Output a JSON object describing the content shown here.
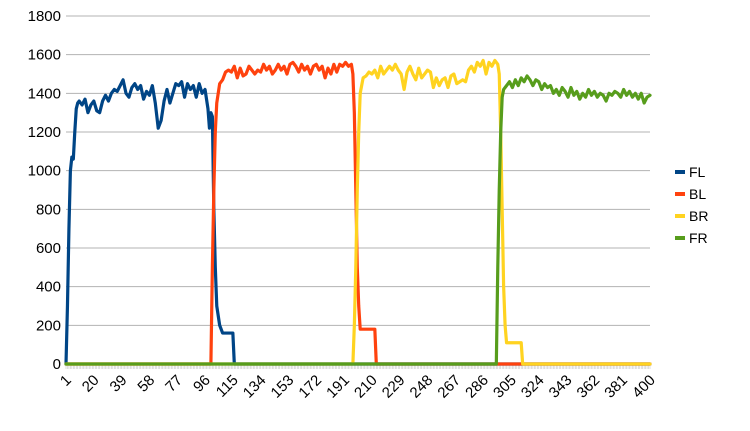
{
  "chart_data": {
    "type": "line",
    "title": "",
    "xlabel": "",
    "ylabel": "",
    "ylim": [
      0,
      1800
    ],
    "y_ticks": [
      "0",
      "200",
      "400",
      "600",
      "800",
      "1000",
      "1200",
      "1400",
      "1600",
      "1800"
    ],
    "x_ticks": [
      "1",
      "20",
      "39",
      "58",
      "77",
      "96",
      "115",
      "134",
      "153",
      "172",
      "191",
      "210",
      "229",
      "248",
      "267",
      "286",
      "305",
      "324",
      "343",
      "362",
      "381",
      "400"
    ],
    "x_range": [
      1,
      400
    ],
    "grid": "horizontal",
    "legend_position": "right",
    "series": [
      {
        "name": "FL",
        "color": "#004586",
        "points": [
          [
            1,
            0
          ],
          [
            2,
            300
          ],
          [
            3,
            700
          ],
          [
            4,
            1000
          ],
          [
            5,
            1070
          ],
          [
            6,
            1060
          ],
          [
            7,
            1200
          ],
          [
            8,
            1320
          ],
          [
            9,
            1350
          ],
          [
            10,
            1360
          ],
          [
            12,
            1340
          ],
          [
            14,
            1370
          ],
          [
            16,
            1300
          ],
          [
            18,
            1340
          ],
          [
            20,
            1360
          ],
          [
            22,
            1310
          ],
          [
            24,
            1300
          ],
          [
            26,
            1360
          ],
          [
            28,
            1390
          ],
          [
            30,
            1360
          ],
          [
            32,
            1400
          ],
          [
            34,
            1420
          ],
          [
            36,
            1410
          ],
          [
            38,
            1440
          ],
          [
            40,
            1470
          ],
          [
            42,
            1400
          ],
          [
            44,
            1380
          ],
          [
            46,
            1430
          ],
          [
            48,
            1450
          ],
          [
            50,
            1420
          ],
          [
            52,
            1440
          ],
          [
            54,
            1370
          ],
          [
            56,
            1410
          ],
          [
            58,
            1390
          ],
          [
            60,
            1440
          ],
          [
            62,
            1350
          ],
          [
            64,
            1220
          ],
          [
            66,
            1260
          ],
          [
            68,
            1360
          ],
          [
            70,
            1420
          ],
          [
            72,
            1350
          ],
          [
            74,
            1400
          ],
          [
            76,
            1450
          ],
          [
            78,
            1440
          ],
          [
            80,
            1460
          ],
          [
            82,
            1380
          ],
          [
            84,
            1450
          ],
          [
            86,
            1420
          ],
          [
            88,
            1440
          ],
          [
            90,
            1380
          ],
          [
            92,
            1450
          ],
          [
            94,
            1400
          ],
          [
            96,
            1420
          ],
          [
            98,
            1320
          ],
          [
            99,
            1220
          ],
          [
            100,
            1300
          ],
          [
            101,
            1280
          ],
          [
            102,
            800
          ],
          [
            103,
            500
          ],
          [
            104,
            300
          ],
          [
            106,
            200
          ],
          [
            108,
            160
          ],
          [
            110,
            160
          ],
          [
            112,
            160
          ],
          [
            114,
            160
          ],
          [
            115,
            160
          ],
          [
            116,
            0
          ],
          [
            400,
            0
          ]
        ]
      },
      {
        "name": "BL",
        "color": "#ff420e",
        "points": [
          [
            1,
            0
          ],
          [
            100,
            0
          ],
          [
            101,
            500
          ],
          [
            102,
            900
          ],
          [
            103,
            1200
          ],
          [
            104,
            1350
          ],
          [
            106,
            1450
          ],
          [
            108,
            1470
          ],
          [
            110,
            1510
          ],
          [
            112,
            1520
          ],
          [
            114,
            1510
          ],
          [
            116,
            1540
          ],
          [
            118,
            1480
          ],
          [
            120,
            1530
          ],
          [
            122,
            1490
          ],
          [
            124,
            1500
          ],
          [
            126,
            1540
          ],
          [
            128,
            1520
          ],
          [
            130,
            1500
          ],
          [
            132,
            1520
          ],
          [
            134,
            1510
          ],
          [
            136,
            1550
          ],
          [
            138,
            1520
          ],
          [
            140,
            1540
          ],
          [
            142,
            1500
          ],
          [
            144,
            1520
          ],
          [
            146,
            1550
          ],
          [
            148,
            1520
          ],
          [
            150,
            1540
          ],
          [
            152,
            1500
          ],
          [
            154,
            1550
          ],
          [
            156,
            1560
          ],
          [
            158,
            1540
          ],
          [
            160,
            1510
          ],
          [
            162,
            1550
          ],
          [
            164,
            1520
          ],
          [
            166,
            1540
          ],
          [
            168,
            1500
          ],
          [
            170,
            1540
          ],
          [
            172,
            1550
          ],
          [
            174,
            1520
          ],
          [
            176,
            1540
          ],
          [
            178,
            1480
          ],
          [
            180,
            1530
          ],
          [
            182,
            1500
          ],
          [
            184,
            1550
          ],
          [
            186,
            1510
          ],
          [
            188,
            1550
          ],
          [
            190,
            1540
          ],
          [
            192,
            1560
          ],
          [
            194,
            1540
          ],
          [
            196,
            1550
          ],
          [
            197,
            1500
          ],
          [
            198,
            1300
          ],
          [
            199,
            900
          ],
          [
            200,
            500
          ],
          [
            201,
            300
          ],
          [
            202,
            180
          ],
          [
            204,
            180
          ],
          [
            206,
            180
          ],
          [
            208,
            180
          ],
          [
            210,
            180
          ],
          [
            212,
            180
          ],
          [
            213,
            0
          ],
          [
            400,
            0
          ]
        ]
      },
      {
        "name": "BR",
        "color": "#ffd320",
        "points": [
          [
            1,
            0
          ],
          [
            197,
            0
          ],
          [
            198,
            200
          ],
          [
            199,
            500
          ],
          [
            200,
            900
          ],
          [
            201,
            1200
          ],
          [
            202,
            1400
          ],
          [
            204,
            1480
          ],
          [
            206,
            1490
          ],
          [
            208,
            1510
          ],
          [
            210,
            1500
          ],
          [
            212,
            1520
          ],
          [
            214,
            1480
          ],
          [
            216,
            1540
          ],
          [
            218,
            1500
          ],
          [
            220,
            1520
          ],
          [
            222,
            1540
          ],
          [
            224,
            1520
          ],
          [
            226,
            1550
          ],
          [
            228,
            1520
          ],
          [
            230,
            1500
          ],
          [
            232,
            1420
          ],
          [
            234,
            1510
          ],
          [
            236,
            1540
          ],
          [
            238,
            1500
          ],
          [
            240,
            1470
          ],
          [
            242,
            1530
          ],
          [
            244,
            1480
          ],
          [
            246,
            1500
          ],
          [
            248,
            1520
          ],
          [
            250,
            1510
          ],
          [
            252,
            1430
          ],
          [
            254,
            1480
          ],
          [
            256,
            1440
          ],
          [
            258,
            1470
          ],
          [
            260,
            1480
          ],
          [
            262,
            1430
          ],
          [
            264,
            1490
          ],
          [
            266,
            1500
          ],
          [
            268,
            1450
          ],
          [
            270,
            1460
          ],
          [
            272,
            1470
          ],
          [
            274,
            1460
          ],
          [
            276,
            1520
          ],
          [
            278,
            1540
          ],
          [
            280,
            1510
          ],
          [
            282,
            1560
          ],
          [
            284,
            1540
          ],
          [
            286,
            1570
          ],
          [
            288,
            1500
          ],
          [
            290,
            1560
          ],
          [
            292,
            1540
          ],
          [
            294,
            1570
          ],
          [
            296,
            1550
          ],
          [
            297,
            1500
          ],
          [
            298,
            1200
          ],
          [
            299,
            800
          ],
          [
            300,
            400
          ],
          [
            301,
            200
          ],
          [
            302,
            110
          ],
          [
            304,
            110
          ],
          [
            306,
            110
          ],
          [
            308,
            110
          ],
          [
            310,
            110
          ],
          [
            312,
            110
          ],
          [
            313,
            0
          ],
          [
            400,
            0
          ]
        ]
      },
      {
        "name": "FR",
        "color": "#579d1c",
        "points": [
          [
            1,
            0
          ],
          [
            295,
            0
          ],
          [
            296,
            500
          ],
          [
            297,
            900
          ],
          [
            298,
            1200
          ],
          [
            299,
            1380
          ],
          [
            300,
            1420
          ],
          [
            302,
            1440
          ],
          [
            304,
            1460
          ],
          [
            306,
            1430
          ],
          [
            308,
            1470
          ],
          [
            310,
            1440
          ],
          [
            312,
            1480
          ],
          [
            314,
            1460
          ],
          [
            316,
            1490
          ],
          [
            318,
            1470
          ],
          [
            320,
            1440
          ],
          [
            322,
            1470
          ],
          [
            324,
            1460
          ],
          [
            326,
            1420
          ],
          [
            328,
            1450
          ],
          [
            330,
            1430
          ],
          [
            332,
            1440
          ],
          [
            334,
            1400
          ],
          [
            336,
            1420
          ],
          [
            338,
            1390
          ],
          [
            340,
            1430
          ],
          [
            342,
            1410
          ],
          [
            344,
            1380
          ],
          [
            346,
            1430
          ],
          [
            348,
            1390
          ],
          [
            350,
            1410
          ],
          [
            352,
            1370
          ],
          [
            354,
            1400
          ],
          [
            356,
            1380
          ],
          [
            358,
            1420
          ],
          [
            360,
            1390
          ],
          [
            362,
            1410
          ],
          [
            364,
            1380
          ],
          [
            366,
            1400
          ],
          [
            368,
            1390
          ],
          [
            370,
            1360
          ],
          [
            372,
            1400
          ],
          [
            374,
            1390
          ],
          [
            376,
            1410
          ],
          [
            378,
            1400
          ],
          [
            380,
            1380
          ],
          [
            382,
            1420
          ],
          [
            384,
            1390
          ],
          [
            386,
            1410
          ],
          [
            388,
            1380
          ],
          [
            390,
            1400
          ],
          [
            392,
            1370
          ],
          [
            394,
            1400
          ],
          [
            396,
            1350
          ],
          [
            398,
            1380
          ],
          [
            400,
            1390
          ]
        ]
      }
    ]
  }
}
